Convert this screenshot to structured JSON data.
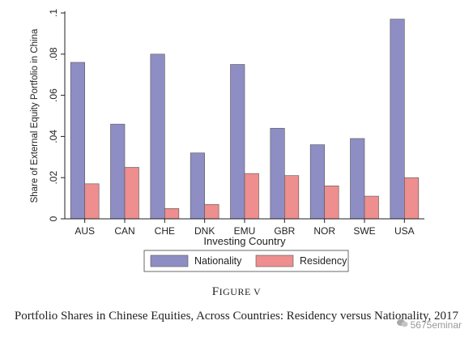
{
  "figure": {
    "label_prefix": "F",
    "label_rest": "IGURE V",
    "caption": "Portfolio Shares in Chinese Equities, Across Countries: Residency versus Nationality, 2017"
  },
  "watermark": "5675eminar",
  "colors": {
    "nationality": "#8e8ec4",
    "residency": "#ee8e8e",
    "axis": "#222222"
  },
  "chart_data": {
    "type": "bar",
    "categories": [
      "AUS",
      "CAN",
      "CHE",
      "DNK",
      "EMU",
      "GBR",
      "NOR",
      "SWE",
      "USA"
    ],
    "series": [
      {
        "name": "Nationality",
        "values": [
          0.076,
          0.046,
          0.08,
          0.032,
          0.075,
          0.044,
          0.036,
          0.039,
          0.097
        ]
      },
      {
        "name": "Residency",
        "values": [
          0.017,
          0.025,
          0.005,
          0.007,
          0.022,
          0.021,
          0.016,
          0.011,
          0.02
        ]
      }
    ],
    "xlabel": "Investing Country",
    "ylabel": "Share of External Equity Portfolio in China",
    "ylim": [
      0,
      0.1
    ],
    "yticks": [
      0,
      0.02,
      0.04,
      0.06,
      0.08,
      0.1
    ],
    "ytick_labels": [
      "0",
      ".02",
      ".04",
      ".06",
      ".08",
      ".1"
    ],
    "legend_position": "bottom-center",
    "grid": false
  }
}
